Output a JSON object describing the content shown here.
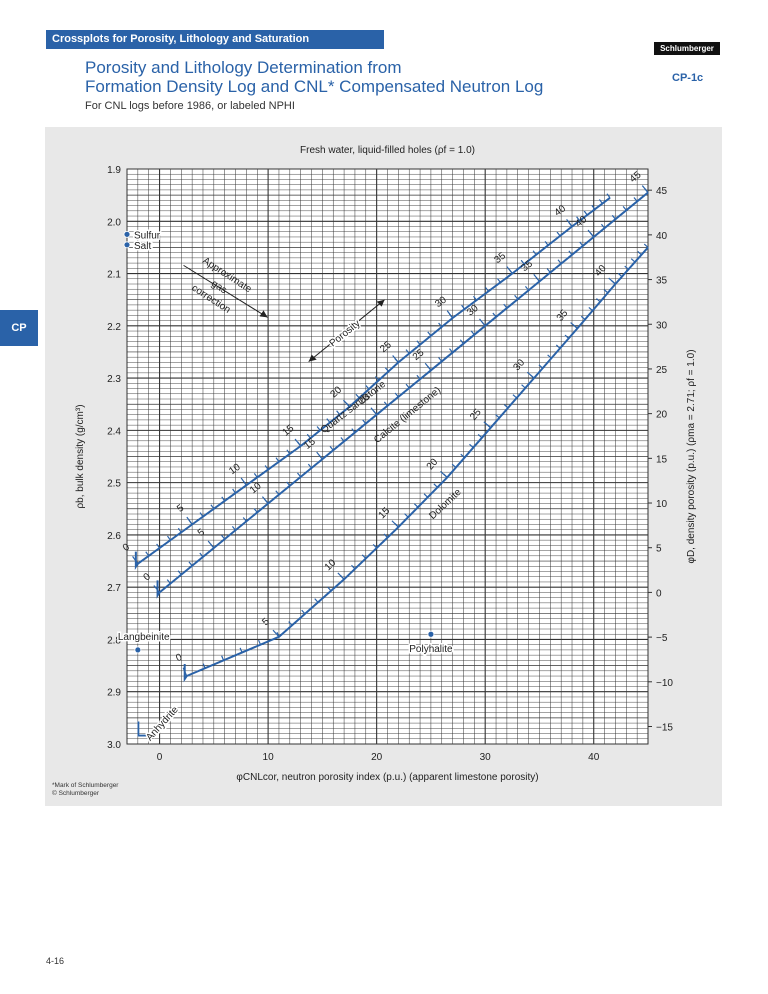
{
  "header": {
    "section": "Crossplots for Porosity, Lithology and Saturation",
    "brand": "Schlumberger",
    "chart_code": "CP-1c",
    "title_line1": "Porosity and Lithology Determination from",
    "title_line2": "Formation Density Log and CNL* Compensated Neutron Log",
    "subtitle": "For CNL logs before 1986, or labeled NPHI"
  },
  "side_tab": "CP",
  "footnotes": [
    "*Mark of Schlumberger",
    "© Schlumberger"
  ],
  "page_number": "4-16",
  "colors": {
    "accent": "#2a62a8",
    "panel": "#e8e8e8",
    "grid": "#333333"
  },
  "chart_data": {
    "type": "line",
    "title": "Fresh water, liquid-filled holes (ρf = 1.0)",
    "xlabel": "φCNLcor, neutron porosity index (p.u.) (apparent limestone porosity)",
    "ylabel": "ρb, bulk density (g/cm³)",
    "y2label": "φD, density porosity (p.u.) (ρma = 2.71; ρf = 1.0)",
    "xlim": [
      -3,
      45
    ],
    "ylim": [
      1.9,
      3.0
    ],
    "x_ticks": [
      0,
      10,
      20,
      30,
      40
    ],
    "y_ticks": [
      1.9,
      2.0,
      2.1,
      2.2,
      2.3,
      2.4,
      2.5,
      2.6,
      2.7,
      2.8,
      2.9,
      3.0
    ],
    "y2_ticks": [
      -15,
      -10,
      -5,
      0,
      5,
      10,
      15,
      20,
      25,
      30,
      35,
      40,
      45
    ],
    "grid": true,
    "series": [
      {
        "name": "Quartz sandstone",
        "x": [
          -2,
          3,
          8,
          13,
          17.5,
          22,
          27,
          32.5,
          38,
          41.5
        ],
        "y": [
          2.655,
          2.58,
          2.505,
          2.43,
          2.355,
          2.27,
          2.185,
          2.1,
          2.01,
          1.955
        ],
        "labels": [
          "0",
          "5",
          "10",
          "15",
          "20",
          "25",
          "30",
          "35",
          "40",
          ""
        ]
      },
      {
        "name": "Calcite (limestone)",
        "x": [
          0,
          5,
          10,
          15,
          20,
          25,
          30,
          35,
          40,
          45
        ],
        "y": [
          2.71,
          2.625,
          2.54,
          2.455,
          2.37,
          2.285,
          2.2,
          2.115,
          2.03,
          1.945
        ],
        "labels": [
          "0",
          "5",
          "10",
          "15",
          "20",
          "25",
          "30",
          "35",
          "40",
          "45"
        ]
      },
      {
        "name": "Dolomite",
        "x": [
          2.5,
          11,
          17,
          22,
          26.5,
          30.5,
          34.5,
          38.5,
          42,
          45
        ],
        "y": [
          2.87,
          2.795,
          2.685,
          2.585,
          2.49,
          2.395,
          2.3,
          2.205,
          2.12,
          2.05
        ],
        "labels": [
          "0",
          "5",
          "10",
          "15",
          "20",
          "25",
          "30",
          "35",
          "40",
          ""
        ]
      }
    ],
    "line_labels": [
      {
        "text": "Quartz sandstone",
        "series": 0
      },
      {
        "text": "Calcite (limestone)",
        "series": 1
      },
      {
        "text": "Dolomite",
        "series": 2
      }
    ],
    "minerals": [
      {
        "name": "Sulfur",
        "x": -3,
        "y": 2.025
      },
      {
        "name": "Salt",
        "x": -3,
        "y": 2.045
      },
      {
        "name": "Langbeinite",
        "x": -2,
        "y": 2.82
      },
      {
        "name": "Polyhalite",
        "x": 25,
        "y": 2.79
      },
      {
        "name": "Anhydrite",
        "x": -2.5,
        "y": 2.98
      }
    ],
    "annotations": [
      {
        "text": "Approximate gas correction"
      },
      {
        "text": "Porosity"
      }
    ]
  }
}
